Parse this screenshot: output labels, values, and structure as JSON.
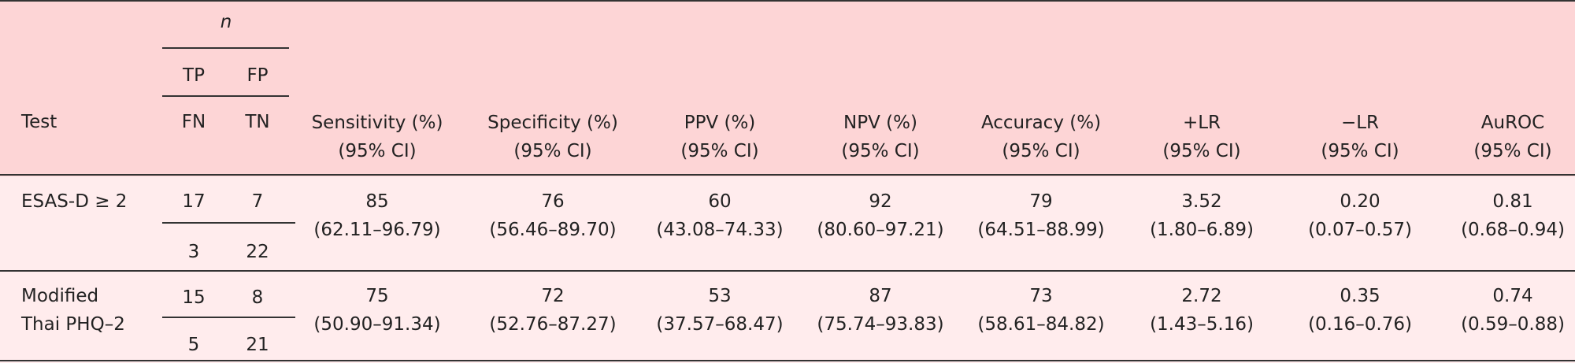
{
  "header": {
    "n_label": "n",
    "tp": "TP",
    "fp": "FP",
    "fn": "FN",
    "tn": "TN",
    "test": "Test",
    "columns": [
      {
        "line1": "Sensitivity (%)",
        "line2": "(95% CI)"
      },
      {
        "line1": "Specificity (%)",
        "line2": "(95% CI)"
      },
      {
        "line1": "PPV (%)",
        "line2": "(95% CI)"
      },
      {
        "line1": "NPV (%)",
        "line2": "(95% CI)"
      },
      {
        "line1": "Accuracy (%)",
        "line2": "(95% CI)"
      },
      {
        "line1": "+LR",
        "line2": "(95% CI)"
      },
      {
        "line1": "−LR",
        "line2": "(95% CI)"
      },
      {
        "line1": "AuROC",
        "line2": "(95% CI)"
      }
    ]
  },
  "rows": [
    {
      "test_line1": "ESAS-D ≥ 2",
      "test_line2": "",
      "tp": "17",
      "fp": "7",
      "fn": "3",
      "tn": "22",
      "values": [
        {
          "v": "85",
          "ci": "(62.11–96.79)"
        },
        {
          "v": "76",
          "ci": "(56.46–89.70)"
        },
        {
          "v": "60",
          "ci": "(43.08–74.33)"
        },
        {
          "v": "92",
          "ci": "(80.60–97.21)"
        },
        {
          "v": "79",
          "ci": "(64.51–88.99)"
        },
        {
          "v": "3.52",
          "ci": "(1.80–6.89)"
        },
        {
          "v": "0.20",
          "ci": "(0.07–0.57)"
        },
        {
          "v": "0.81",
          "ci": "(0.68–0.94)"
        }
      ]
    },
    {
      "test_line1": "Modified",
      "test_line2": "Thai PHQ–2",
      "tp": "15",
      "fp": "8",
      "fn": "5",
      "tn": "21",
      "values": [
        {
          "v": "75",
          "ci": "(50.90–91.34)"
        },
        {
          "v": "72",
          "ci": "(52.76–87.27)"
        },
        {
          "v": "53",
          "ci": "(37.57–68.47)"
        },
        {
          "v": "87",
          "ci": "(75.74–93.83)"
        },
        {
          "v": "73",
          "ci": "(58.61–84.82)"
        },
        {
          "v": "2.72",
          "ci": "(1.43–5.16)"
        },
        {
          "v": "0.35",
          "ci": "(0.16–0.76)"
        },
        {
          "v": "0.74",
          "ci": "(0.59–0.88)"
        }
      ]
    }
  ]
}
